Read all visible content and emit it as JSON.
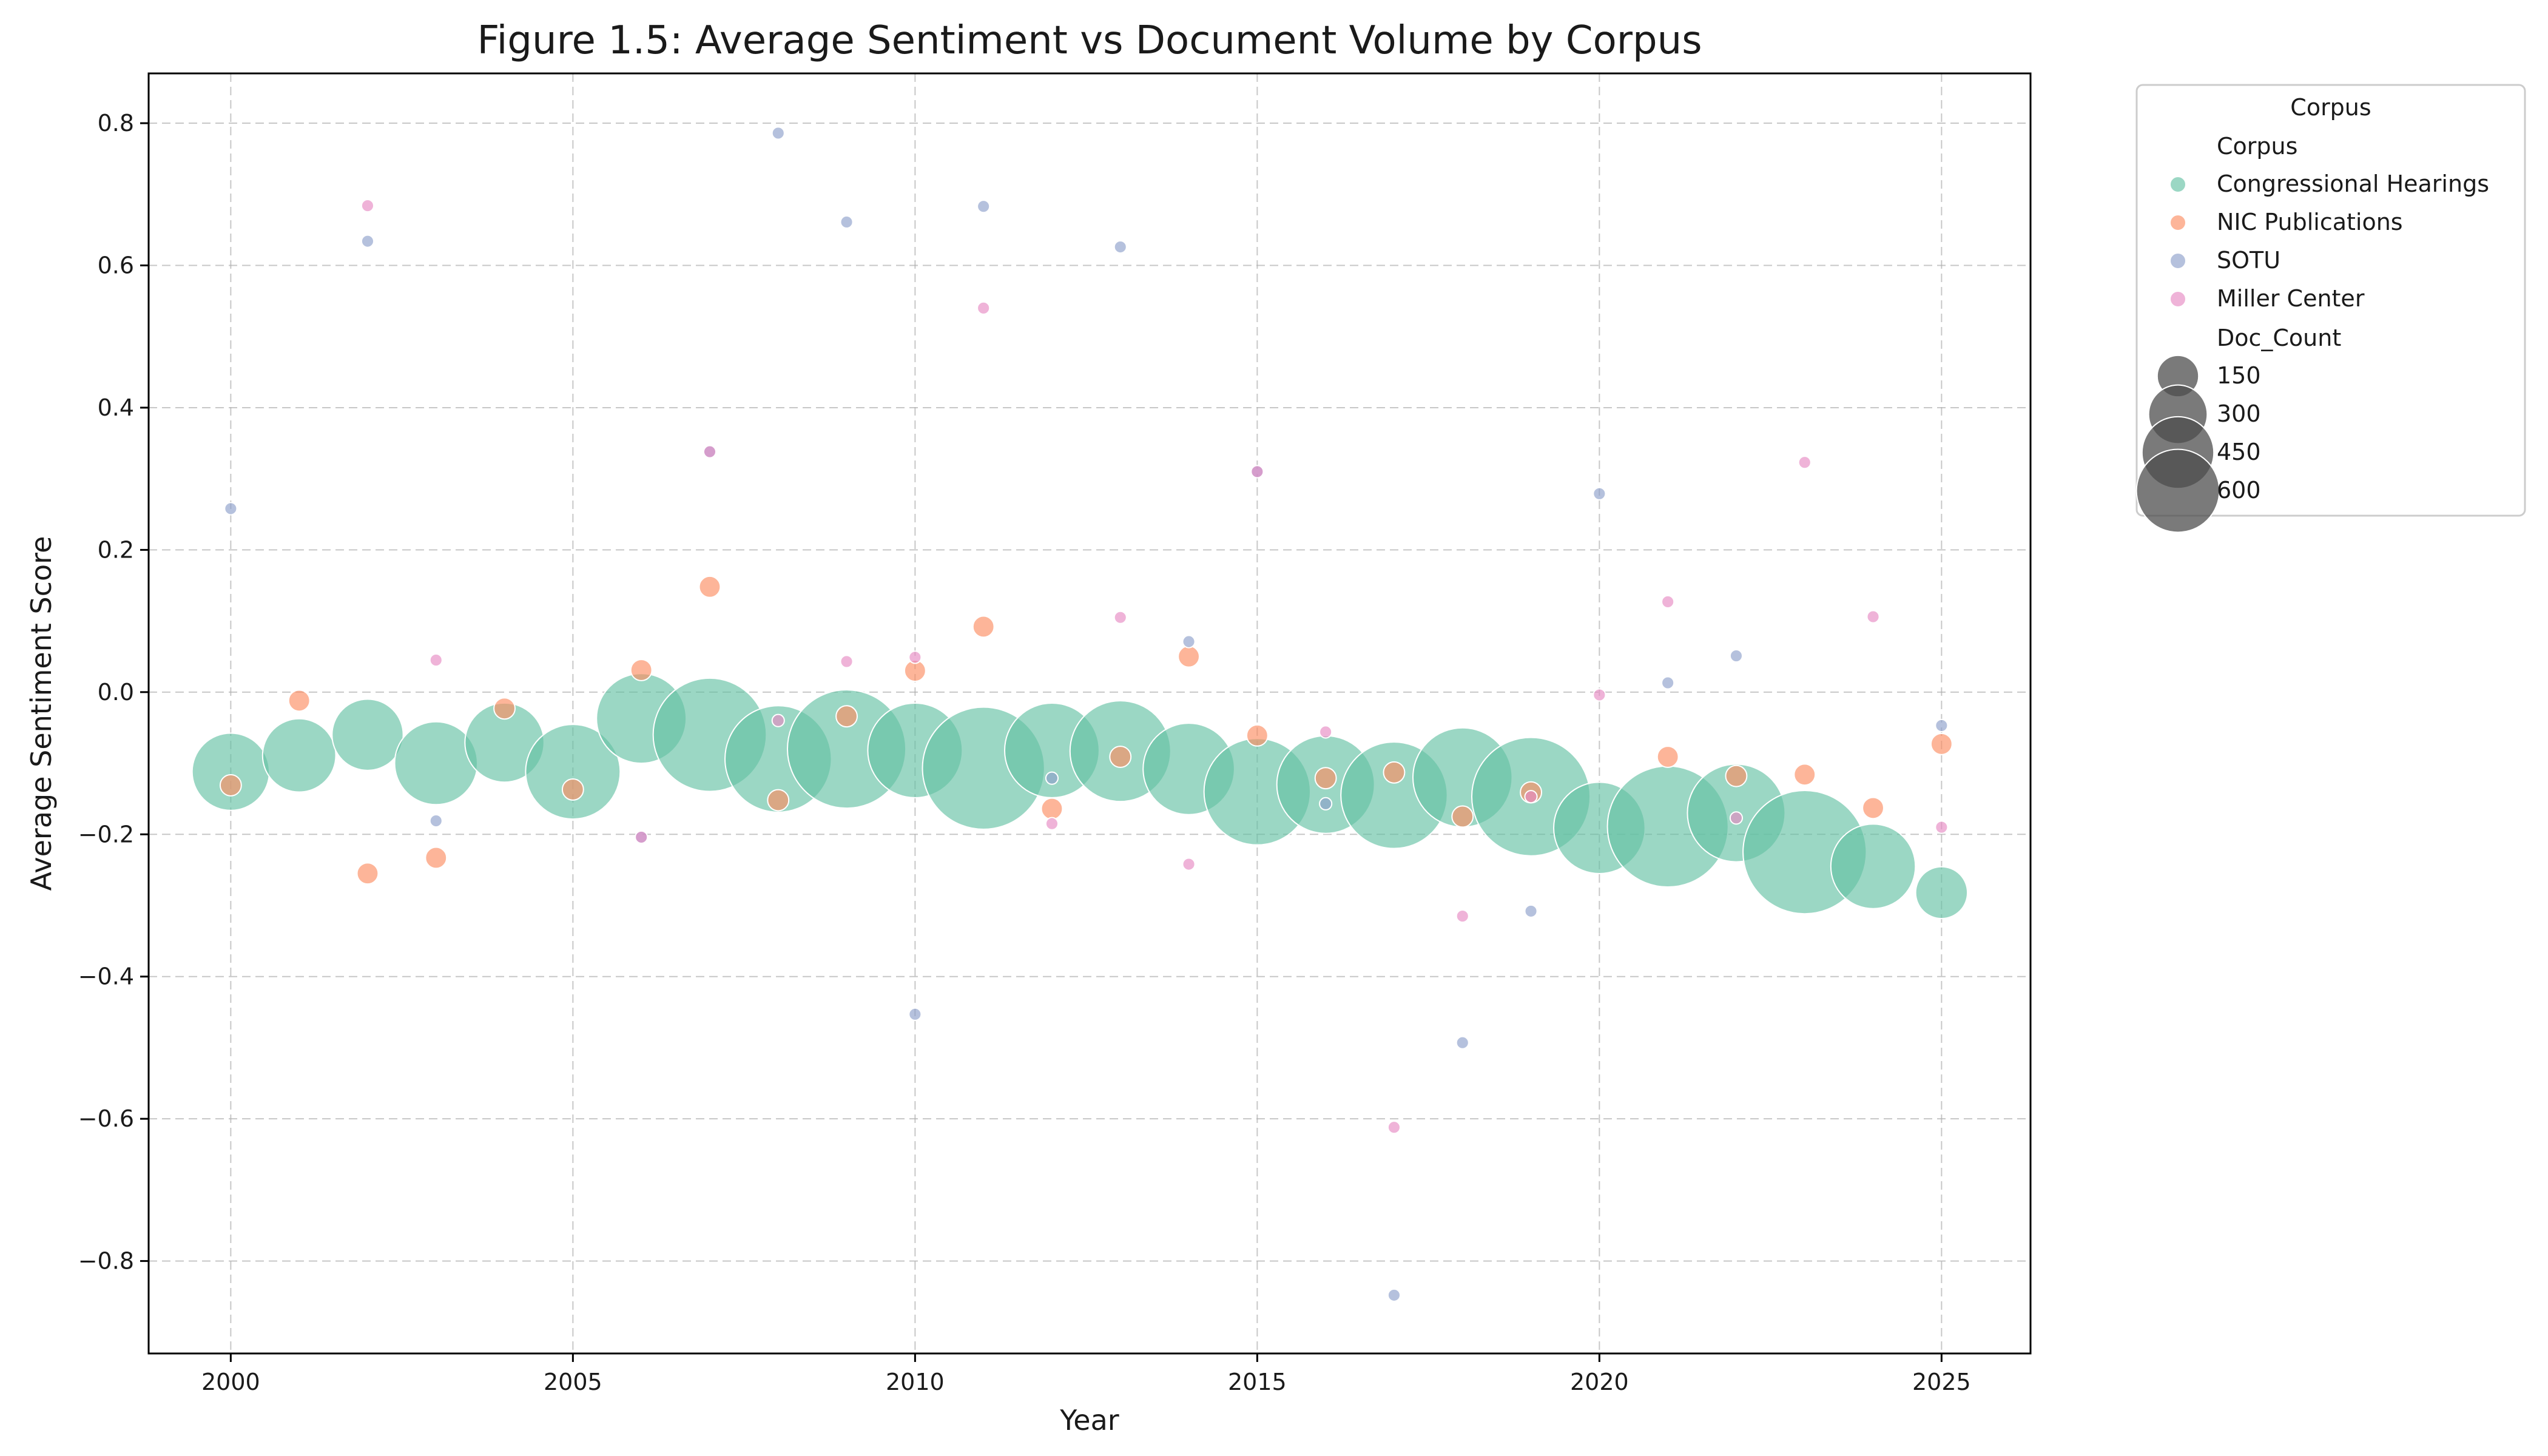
{
  "chart_data": {
    "type": "scatter",
    "title": "Figure 1.5: Average Sentiment vs Document Volume by Corpus",
    "xlabel": "Year",
    "ylabel": "Average Sentiment Score",
    "xlim": [
      1998.8,
      2026.3
    ],
    "ylim": [
      -0.93,
      0.87
    ],
    "xticks": [
      2000,
      2005,
      2010,
      2015,
      2020,
      2025
    ],
    "yticks": [
      -0.8,
      -0.6,
      -0.4,
      -0.2,
      0.0,
      0.2,
      0.4,
      0.6,
      0.8
    ],
    "xtick_labels": [
      "2000",
      "2005",
      "2010",
      "2015",
      "2020",
      "2025"
    ],
    "ytick_labels": [
      "−0.8",
      "−0.6",
      "−0.4",
      "−0.2",
      "0.0",
      "0.2",
      "0.4",
      "0.6",
      "0.8"
    ],
    "grid": true,
    "legend": {
      "placement": "outside-right-top",
      "title": "Corpus",
      "hue_title": "Corpus",
      "size_title": "Doc_Count",
      "size_entries": [
        150,
        300,
        450,
        600
      ]
    },
    "size_encoding": "Doc_Count",
    "series": [
      {
        "name": "Congressional Hearings",
        "color": "#66c2a5",
        "x": [
          2000,
          2001,
          2002,
          2003,
          2004,
          2005,
          2006,
          2007,
          2008,
          2009,
          2010,
          2011,
          2012,
          2013,
          2014,
          2015,
          2016,
          2017,
          2018,
          2019,
          2020,
          2021,
          2022,
          2023,
          2024,
          2025
        ],
        "y": [
          -0.112,
          -0.089,
          -0.06,
          -0.1,
          -0.071,
          -0.112,
          -0.037,
          -0.06,
          -0.094,
          -0.08,
          -0.082,
          -0.107,
          -0.082,
          -0.083,
          -0.108,
          -0.14,
          -0.13,
          -0.145,
          -0.12,
          -0.147,
          -0.191,
          -0.189,
          -0.17,
          -0.225,
          -0.245,
          -0.282
        ],
        "doc_count": [
          200,
          180,
          170,
          230,
          210,
          300,
          270,
          430,
          380,
          470,
          300,
          500,
          300,
          340,
          280,
          380,
          320,
          380,
          330,
          470,
          280,
          490,
          320,
          510,
          240,
          90
        ]
      },
      {
        "name": "NIC Publications",
        "color": "#fc8d62",
        "x": [
          2000,
          2001,
          2002,
          2003,
          2004,
          2005,
          2006,
          2007,
          2008,
          2009,
          2010,
          2011,
          2012,
          2013,
          2014,
          2015,
          2016,
          2017,
          2018,
          2019,
          2020,
          2021,
          2022,
          2023,
          2024,
          2025
        ],
        "y": [
          -0.131,
          -0.012,
          -0.255,
          -0.233,
          -0.023,
          -0.137,
          0.031,
          0.148,
          -0.152,
          -0.034,
          0.03,
          0.092,
          -0.164,
          -0.091,
          0.05,
          -0.061,
          -0.121,
          -0.113,
          -0.175,
          -0.141,
          null,
          -0.091,
          -0.118,
          -0.116,
          -0.163,
          -0.073
        ],
        "doc_count": [
          15,
          15,
          15,
          15,
          15,
          15,
          15,
          15,
          15,
          15,
          15,
          15,
          15,
          15,
          15,
          15,
          15,
          15,
          15,
          15,
          null,
          15,
          15,
          15,
          15,
          15
        ]
      },
      {
        "name": "SOTU",
        "color": "#8da0cb",
        "x": [
          2000,
          2002,
          2003,
          2006,
          2007,
          2008,
          2009,
          2010,
          2011,
          2012,
          2013,
          2014,
          2015,
          2016,
          2017,
          2018,
          2019,
          2020,
          2021,
          2022,
          2025
        ],
        "y": [
          0.258,
          0.634,
          -0.181,
          -0.204,
          0.338,
          0.786,
          0.661,
          -0.453,
          0.683,
          -0.121,
          0.626,
          0.071,
          0.31,
          -0.157,
          -0.848,
          -0.493,
          -0.308,
          0.279,
          0.013,
          0.051,
          -0.047
        ],
        "doc_count": [
          5,
          5,
          5,
          5,
          5,
          5,
          5,
          5,
          5,
          5,
          5,
          5,
          5,
          5,
          5,
          5,
          5,
          5,
          5,
          5,
          5
        ]
      },
      {
        "name": "Miller Center",
        "color": "#e78ac3",
        "x": [
          2002,
          2003,
          2006,
          2007,
          2008,
          2009,
          2010,
          2011,
          2012,
          2013,
          2014,
          2015,
          2016,
          2017,
          2018,
          2019,
          2020,
          2021,
          2022,
          2023,
          2024,
          2025
        ],
        "y": [
          0.684,
          0.045,
          -0.204,
          0.338,
          -0.04,
          0.043,
          0.049,
          0.54,
          -0.185,
          0.105,
          -0.242,
          0.31,
          -0.056,
          -0.612,
          -0.315,
          -0.147,
          -0.004,
          0.127,
          -0.177,
          0.323,
          0.106,
          -0.19
        ],
        "doc_count": [
          5,
          5,
          5,
          5,
          5,
          5,
          5,
          5,
          5,
          5,
          5,
          5,
          5,
          5,
          5,
          5,
          5,
          5,
          5,
          5,
          5,
          5
        ]
      }
    ]
  }
}
